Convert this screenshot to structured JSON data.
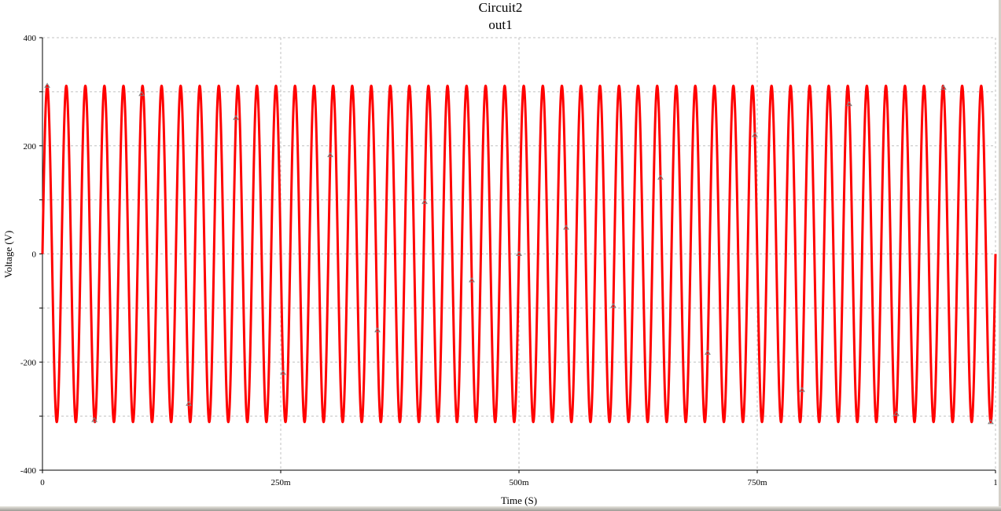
{
  "chart_data": {
    "type": "line",
    "title": "Circuit2",
    "subtitle": "out1",
    "xlabel": "Time (S)",
    "ylabel": "Voltage (V)",
    "xlim": [
      0,
      1
    ],
    "ylim": [
      -400,
      400
    ],
    "x_ticks": [
      {
        "value": 0,
        "label": "0"
      },
      {
        "value": 0.25,
        "label": "250m"
      },
      {
        "value": 0.5,
        "label": "500m"
      },
      {
        "value": 0.75,
        "label": "750m"
      },
      {
        "value": 1,
        "label": "1"
      }
    ],
    "y_ticks": [
      {
        "value": 400,
        "label": "400"
      },
      {
        "value": 200,
        "label": "200"
      },
      {
        "value": 0,
        "label": "0"
      },
      {
        "value": -200,
        "label": "-200"
      },
      {
        "value": -400,
        "label": "-400"
      }
    ],
    "y_grid_step": 100,
    "grid": true,
    "series": [
      {
        "name": "out1",
        "shape": "sine",
        "amplitude": 311,
        "frequency_hz": 50,
        "color": "#ff0000",
        "marker_times": [
          0.005,
          0.0545,
          0.104,
          0.1535,
          0.203,
          0.2525,
          0.302,
          0.3515,
          0.401,
          0.4505,
          0.5,
          0.5495,
          0.599,
          0.6485,
          0.698,
          0.7475,
          0.797,
          0.8465,
          0.896,
          0.9455,
          0.995
        ],
        "marker_color": "#808080"
      }
    ]
  }
}
